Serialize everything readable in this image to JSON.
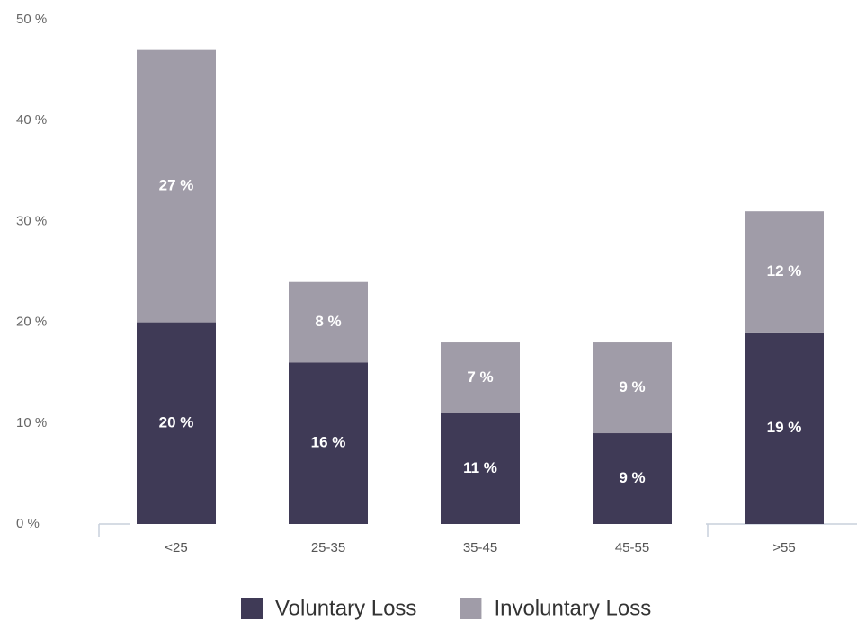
{
  "chart_data": {
    "type": "stacked_bar",
    "categories": [
      "<25",
      "25-35",
      "35-45",
      "45-55",
      ">55"
    ],
    "series": [
      {
        "name": "Voluntary Loss",
        "color": "#3f3a56",
        "values": [
          20,
          16,
          11,
          9,
          19
        ],
        "value_labels": [
          "20 %",
          "16 %",
          "11 %",
          "9 %",
          "19 %"
        ]
      },
      {
        "name": "Involuntary Loss",
        "color": "#a09ca8",
        "values": [
          27,
          8,
          7,
          9,
          12
        ],
        "value_labels": [
          "27 %",
          "8 %",
          "7 %",
          "9 %",
          "12 %"
        ]
      }
    ],
    "ylim": [
      0,
      50
    ],
    "yticks": [
      {
        "value": 0,
        "label": "0 %"
      },
      {
        "value": 10,
        "label": "10 %"
      },
      {
        "value": 20,
        "label": "20 %"
      },
      {
        "value": 30,
        "label": "30 %"
      },
      {
        "value": 40,
        "label": "40 %"
      },
      {
        "value": 50,
        "label": "50 %"
      }
    ],
    "legend": "bottom",
    "grid": false
  }
}
